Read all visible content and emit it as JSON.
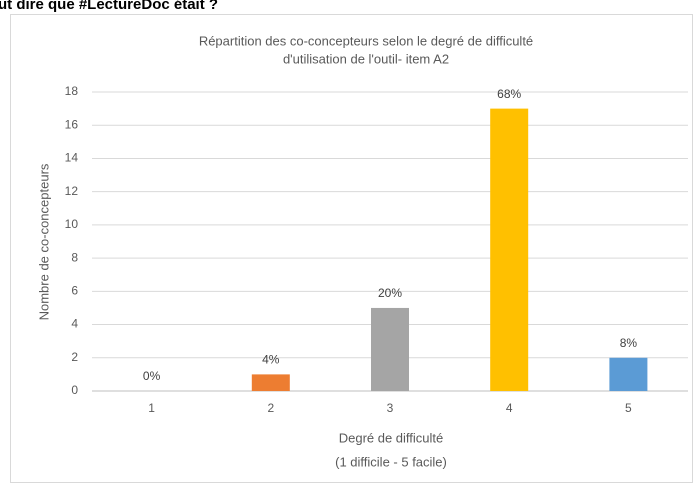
{
  "heading": "ut dire que #LectureDoc était ?",
  "chart_data": {
    "type": "bar",
    "title": [
      "Répartition des co-concepteurs selon le degré de difficulté",
      "d'utilisation de l'outil- item A2"
    ],
    "x_label": [
      "Degré de difficulté",
      "(1 difficile - 5 facile)"
    ],
    "y_label": "Nombre de co-concepteurs",
    "categories": [
      "1",
      "2",
      "3",
      "4",
      "5"
    ],
    "values": [
      0,
      1,
      5,
      17,
      2
    ],
    "value_labels": [
      "0%",
      "4%",
      "20%",
      "68%",
      "8%"
    ],
    "colors": [
      "#4472c4",
      "#ed7d31",
      "#a5a5a5",
      "#ffc000",
      "#5b9bd5"
    ],
    "ylim": [
      0,
      18
    ],
    "yticks": [
      0,
      2,
      4,
      6,
      8,
      10,
      12,
      14,
      16,
      18
    ],
    "grid": true
  }
}
